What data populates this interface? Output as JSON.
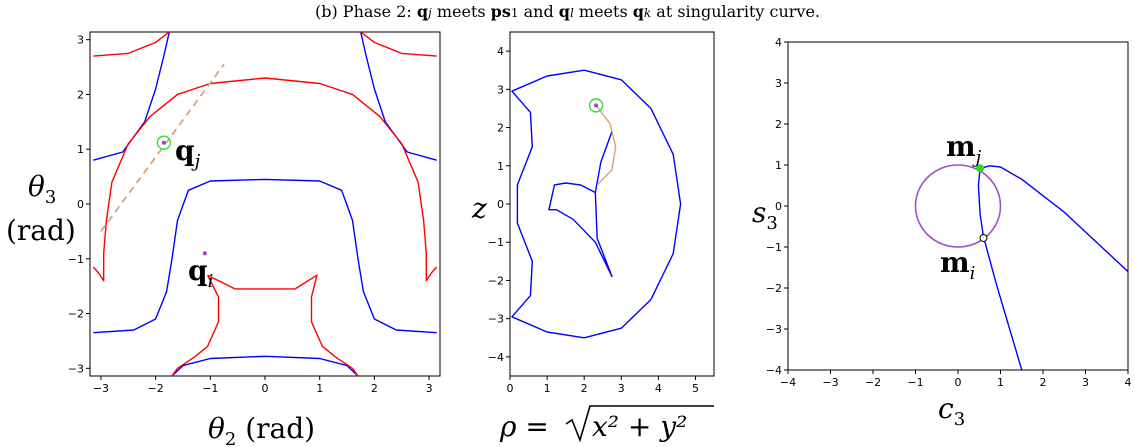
{
  "caption": {
    "prefix": "(b) Phase 2: ",
    "q": "q",
    "j": "j",
    "meets": " meets ",
    "ps": "ps",
    "one": "1",
    "and": " and ",
    "l": "l",
    "k": "k",
    "suffix": " at singularity curve."
  },
  "chart_data": [
    {
      "type": "line",
      "id": "theta-plane",
      "xlabel": "θ2 (rad)",
      "ylabel": "θ3 (rad)",
      "xlim": [
        -3.2,
        3.2
      ],
      "ylim": [
        -3.14,
        3.14
      ],
      "xticks": [
        -3,
        -2,
        -1,
        0,
        1,
        2,
        3
      ],
      "yticks": [
        -3,
        -2,
        -1,
        0,
        1,
        2,
        3
      ],
      "grid": false,
      "series": [
        {
          "color": "#0000ff",
          "points": [
            [
              -1.75,
              3.14
            ],
            [
              -1.85,
              2.7
            ],
            [
              -2.0,
              2.1
            ],
            [
              -2.2,
              1.5
            ],
            [
              -2.6,
              0.95
            ],
            [
              -3.14,
              0.8
            ]
          ]
        },
        {
          "color": "#0000ff",
          "points": [
            [
              1.75,
              3.14
            ],
            [
              1.85,
              2.7
            ],
            [
              2.0,
              2.1
            ],
            [
              2.2,
              1.5
            ],
            [
              2.6,
              0.95
            ],
            [
              3.14,
              0.8
            ]
          ]
        },
        {
          "color": "#0000ff",
          "points": [
            [
              -3.14,
              -2.35
            ],
            [
              -2.4,
              -2.3
            ],
            [
              -2.0,
              -2.1
            ],
            [
              -1.8,
              -1.6
            ],
            [
              -1.7,
              -1.0
            ],
            [
              -1.6,
              -0.3
            ],
            [
              -1.4,
              0.25
            ],
            [
              -1.0,
              0.42
            ],
            [
              0,
              0.45
            ],
            [
              1.0,
              0.42
            ],
            [
              1.4,
              0.25
            ],
            [
              1.6,
              -0.3
            ],
            [
              1.7,
              -1.0
            ],
            [
              1.8,
              -1.6
            ],
            [
              2.0,
              -2.1
            ],
            [
              2.4,
              -2.3
            ],
            [
              3.14,
              -2.35
            ]
          ]
        },
        {
          "color": "#0000ff",
          "points": [
            [
              -1.7,
              -3.14
            ],
            [
              -1.5,
              -2.95
            ],
            [
              -1.0,
              -2.82
            ],
            [
              0,
              -2.78
            ],
            [
              1.0,
              -2.82
            ],
            [
              1.5,
              -2.95
            ],
            [
              1.7,
              -3.14
            ]
          ]
        },
        {
          "color": "#ff0000",
          "points": [
            [
              -3.14,
              2.7
            ],
            [
              -2.5,
              2.75
            ],
            [
              -2.0,
              2.95
            ],
            [
              -1.75,
              3.14
            ]
          ]
        },
        {
          "color": "#ff0000",
          "points": [
            [
              3.14,
              2.7
            ],
            [
              2.5,
              2.75
            ],
            [
              2.0,
              2.95
            ],
            [
              1.75,
              3.14
            ]
          ]
        },
        {
          "color": "#ff0000",
          "points": [
            [
              -3.14,
              -1.15
            ],
            [
              -3.05,
              -1.25
            ],
            [
              -2.95,
              -1.4
            ],
            [
              -2.95,
              -0.9
            ],
            [
              -2.9,
              -0.3
            ],
            [
              -2.8,
              0.4
            ],
            [
              -2.5,
              1.1
            ],
            [
              -2.1,
              1.6
            ],
            [
              -1.6,
              2.0
            ],
            [
              -1.0,
              2.2
            ],
            [
              0,
              2.3
            ],
            [
              1.0,
              2.2
            ],
            [
              1.6,
              2.0
            ],
            [
              2.1,
              1.6
            ],
            [
              2.5,
              1.1
            ],
            [
              2.8,
              0.4
            ],
            [
              2.9,
              -0.3
            ],
            [
              2.95,
              -0.9
            ],
            [
              2.95,
              -1.4
            ],
            [
              3.05,
              -1.25
            ],
            [
              3.14,
              -1.15
            ]
          ]
        },
        {
          "color": "#ff0000",
          "points": [
            [
              -1.05,
              -1.3
            ],
            [
              -0.55,
              -1.55
            ],
            [
              0,
              -1.55
            ],
            [
              0.55,
              -1.55
            ],
            [
              0.95,
              -1.3
            ],
            [
              0.85,
              -1.7
            ],
            [
              0.85,
              -2.15
            ],
            [
              1.05,
              -2.6
            ],
            [
              1.3,
              -2.8
            ],
            [
              1.6,
              -3.0
            ],
            [
              1.7,
              -3.14
            ]
          ]
        },
        {
          "color": "#ff0000",
          "points": [
            [
              -1.05,
              -1.3
            ],
            [
              -0.85,
              -1.7
            ],
            [
              -0.85,
              -2.15
            ],
            [
              -1.05,
              -2.6
            ],
            [
              -1.3,
              -2.8
            ],
            [
              -1.6,
              -3.0
            ],
            [
              -1.7,
              -3.14
            ]
          ]
        },
        {
          "color": "#d2a47e",
          "dash": true,
          "points": [
            [
              -3.0,
              -0.5
            ],
            [
              -0.75,
              2.55
            ]
          ]
        }
      ],
      "annotations": [
        {
          "label": "q",
          "sub": "j",
          "x": -1.85,
          "y": 1.12,
          "style": "green-circle"
        },
        {
          "label": "q",
          "sub": "i",
          "x": -1.1,
          "y": -0.9,
          "style": "purple-dot"
        }
      ]
    },
    {
      "type": "line",
      "id": "rho-z-plane",
      "xlabel": "ρ = √(x² + y²)",
      "ylabel": "z",
      "xlim": [
        0,
        5.5
      ],
      "ylim": [
        -4.5,
        4.5
      ],
      "xticks": [
        0,
        1,
        2,
        3,
        4,
        5
      ],
      "yticks": [
        -4,
        -3,
        -2,
        -1,
        0,
        1,
        2,
        3,
        4
      ],
      "grid": false,
      "series": [
        {
          "color": "#0000ff",
          "closed": true,
          "points": [
            [
              0.05,
              2.95
            ],
            [
              1.0,
              3.35
            ],
            [
              2.0,
              3.5
            ],
            [
              3.0,
              3.25
            ],
            [
              3.8,
              2.5
            ],
            [
              4.4,
              1.3
            ],
            [
              4.6,
              0
            ],
            [
              4.4,
              -1.3
            ],
            [
              3.8,
              -2.5
            ],
            [
              3.0,
              -3.25
            ],
            [
              2.0,
              -3.5
            ],
            [
              1.0,
              -3.35
            ],
            [
              0.05,
              -2.95
            ],
            [
              0.55,
              -2.4
            ],
            [
              0.6,
              -1.5
            ],
            [
              0.2,
              -0.5
            ],
            [
              0.2,
              0.5
            ],
            [
              0.6,
              1.5
            ],
            [
              0.55,
              2.4
            ]
          ]
        },
        {
          "color": "#0000ff",
          "closed": true,
          "points": [
            [
              2.75,
              1.9
            ],
            [
              2.45,
              1.1
            ],
            [
              2.3,
              0.3
            ],
            [
              2.35,
              -0.9
            ],
            [
              2.75,
              -1.9
            ],
            [
              2.3,
              -1.0
            ],
            [
              1.7,
              -0.4
            ],
            [
              1.25,
              -0.15
            ],
            [
              1.05,
              -0.15
            ],
            [
              1.2,
              0.5
            ],
            [
              1.5,
              0.55
            ],
            [
              1.9,
              0.5
            ],
            [
              2.3,
              0.3
            ],
            [
              2.45,
              1.1
            ]
          ]
        },
        {
          "color": "#d2a47e",
          "points": [
            [
              2.32,
              2.58
            ],
            [
              2.7,
              2.1
            ],
            [
              2.85,
              1.5
            ],
            [
              2.75,
              0.9
            ],
            [
              2.35,
              0.5
            ]
          ]
        }
      ],
      "annotations": [
        {
          "x": 2.32,
          "y": 2.58,
          "style": "green-circle"
        }
      ]
    },
    {
      "type": "line",
      "id": "c3-s3-plane",
      "xlabel": "c3",
      "ylabel": "s3",
      "xlim": [
        -4,
        4
      ],
      "ylim": [
        -4,
        4
      ],
      "xticks": [
        -4,
        -3,
        -2,
        -1,
        0,
        1,
        2,
        3,
        4
      ],
      "yticks": [
        -4,
        -3,
        -2,
        -1,
        0,
        1,
        2,
        3,
        4
      ],
      "grid": false,
      "series": [
        {
          "color": "#0000ff",
          "points": [
            [
              0.52,
              0.92
            ],
            [
              0.75,
              0.98
            ],
            [
              1.0,
              0.95
            ],
            [
              1.5,
              0.65
            ],
            [
              2.5,
              -0.15
            ],
            [
              4.0,
              -1.6
            ]
          ]
        },
        {
          "color": "#0000ff",
          "points": [
            [
              0.52,
              0.92
            ],
            [
              0.48,
              0.5
            ],
            [
              0.52,
              -0.2
            ],
            [
              0.6,
              -0.75
            ],
            [
              0.9,
              -1.9
            ],
            [
              1.5,
              -4.0
            ]
          ]
        }
      ],
      "circle": {
        "cx": 0.0,
        "cy": 0.0,
        "r": 1.0,
        "color": "#a050c8"
      },
      "annotations": [
        {
          "label": "m",
          "sub": "j",
          "x": 0.52,
          "y": 0.92,
          "style": "green-dot"
        },
        {
          "label": "m",
          "sub": "i",
          "x": 0.6,
          "y": -0.78,
          "style": "open-circle"
        }
      ]
    }
  ],
  "labels": {
    "p1_xlabel_main": "θ",
    "p1_xlabel_sub": "2",
    "p1_xlabel_unit": " (rad)",
    "p1_ylabel_main": "θ",
    "p1_ylabel_sub": "3",
    "p1_ylabel_unit": "(rad)",
    "p2_ylabel": "z",
    "p2_xlabel_rho": "ρ = ",
    "p2_xlabel_rad": "x² + y²",
    "p3_ylabel_main": "s",
    "p3_ylabel_sub": "3",
    "p3_xlabel_main": "c",
    "p3_xlabel_sub": "3",
    "qj_main": "q",
    "qj_sub": "j",
    "qi_main": "q",
    "qi_sub": "i",
    "mj_main": "m",
    "mj_sub": "j",
    "mi_main": "m",
    "mi_sub": "i"
  }
}
